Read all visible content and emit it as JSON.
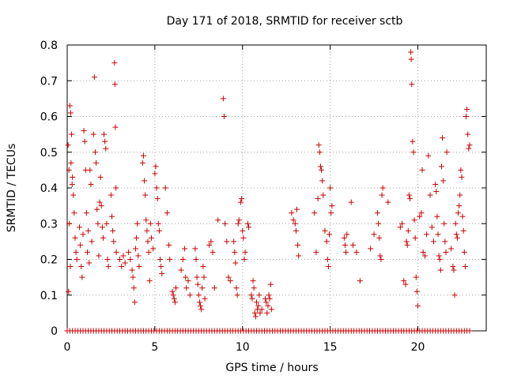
{
  "chart_data": {
    "type": "scatter",
    "title": "Day 171 of 2018, SRMTID for receiver sctb",
    "xlabel": "GPS time / hours",
    "ylabel": "SRMTID / TECUs",
    "xlim": [
      0,
      23.9
    ],
    "ylim": [
      0,
      0.8
    ],
    "xticks": [
      0,
      5,
      10,
      15,
      20
    ],
    "yticks": [
      0,
      0.1,
      0.2,
      0.3,
      0.4,
      0.5,
      0.6,
      0.7,
      0.8
    ],
    "xtick_labels": [
      "0",
      "5",
      "10",
      "15",
      "20"
    ],
    "ytick_labels": [
      "0",
      "0.1",
      "0.2",
      "0.3",
      "0.4",
      "0.5",
      "0.6",
      "0.7",
      "0.8"
    ],
    "grid": true,
    "marker": "+",
    "color": "#cc0000",
    "series": [
      {
        "name": "SRMTID",
        "points": [
          [
            0.05,
            0.52
          ],
          [
            0.1,
            0.45
          ],
          [
            0.15,
            0.63
          ],
          [
            0.2,
            0.61
          ],
          [
            0.25,
            0.55
          ],
          [
            0.3,
            0.43
          ],
          [
            0.12,
            0.3
          ],
          [
            0.18,
            0.18
          ],
          [
            0.08,
            0.11
          ],
          [
            0.35,
            0.38
          ],
          [
            0.4,
            0.33
          ],
          [
            0.45,
            0.26
          ],
          [
            0.5,
            0.22
          ],
          [
            0.55,
            0.2
          ],
          [
            0.22,
            0.47
          ],
          [
            0.28,
            0.41
          ],
          [
            0.7,
            0.29
          ],
          [
            0.75,
            0.24
          ],
          [
            0.8,
            0.18
          ],
          [
            0.85,
            0.15
          ],
          [
            0.9,
            0.27
          ],
          [
            0.95,
            0.56
          ],
          [
            1.0,
            0.53
          ],
          [
            1.05,
            0.45
          ],
          [
            1.1,
            0.33
          ],
          [
            1.15,
            0.22
          ],
          [
            1.2,
            0.28
          ],
          [
            1.25,
            0.19
          ],
          [
            1.3,
            0.45
          ],
          [
            1.35,
            0.41
          ],
          [
            1.4,
            0.25
          ],
          [
            1.5,
            0.55
          ],
          [
            1.55,
            0.71
          ],
          [
            1.6,
            0.5
          ],
          [
            1.65,
            0.47
          ],
          [
            1.7,
            0.34
          ],
          [
            1.75,
            0.3
          ],
          [
            1.8,
            0.21
          ],
          [
            1.85,
            0.36
          ],
          [
            1.9,
            0.43
          ],
          [
            1.95,
            0.35
          ],
          [
            2.0,
            0.29
          ],
          [
            2.05,
            0.26
          ],
          [
            2.1,
            0.55
          ],
          [
            2.15,
            0.53
          ],
          [
            2.2,
            0.51
          ],
          [
            2.25,
            0.3
          ],
          [
            2.3,
            0.2
          ],
          [
            2.35,
            0.18
          ],
          [
            2.5,
            0.38
          ],
          [
            2.55,
            0.32
          ],
          [
            2.6,
            0.28
          ],
          [
            2.65,
            0.25
          ],
          [
            2.7,
            0.75
          ],
          [
            2.72,
            0.69
          ],
          [
            2.75,
            0.57
          ],
          [
            2.78,
            0.4
          ],
          [
            2.8,
            0.22
          ],
          [
            3.0,
            0.2
          ],
          [
            3.1,
            0.18
          ],
          [
            3.2,
            0.21
          ],
          [
            3.3,
            0.19
          ],
          [
            3.5,
            0.22
          ],
          [
            3.6,
            0.2
          ],
          [
            3.7,
            0.17
          ],
          [
            3.75,
            0.15
          ],
          [
            3.8,
            0.12
          ],
          [
            3.85,
            0.08
          ],
          [
            3.9,
            0.23
          ],
          [
            3.95,
            0.26
          ],
          [
            4.0,
            0.3
          ],
          [
            4.05,
            0.21
          ],
          [
            4.1,
            0.18
          ],
          [
            4.3,
            0.47
          ],
          [
            4.35,
            0.49
          ],
          [
            4.4,
            0.42
          ],
          [
            4.45,
            0.38
          ],
          [
            4.5,
            0.31
          ],
          [
            4.55,
            0.28
          ],
          [
            4.6,
            0.25
          ],
          [
            4.65,
            0.22
          ],
          [
            4.7,
            0.14
          ],
          [
            4.75,
            0.3
          ],
          [
            4.8,
            0.26
          ],
          [
            4.9,
            0.23
          ],
          [
            5.0,
            0.44
          ],
          [
            5.05,
            0.46
          ],
          [
            5.1,
            0.4
          ],
          [
            5.15,
            0.37
          ],
          [
            5.2,
            0.3
          ],
          [
            5.25,
            0.28
          ],
          [
            5.3,
            0.2
          ],
          [
            5.35,
            0.18
          ],
          [
            5.4,
            0.16
          ],
          [
            5.6,
            0.4
          ],
          [
            5.7,
            0.33
          ],
          [
            5.8,
            0.24
          ],
          [
            5.85,
            0.2
          ],
          [
            6.0,
            0.11
          ],
          [
            6.05,
            0.1
          ],
          [
            6.1,
            0.09
          ],
          [
            6.15,
            0.08
          ],
          [
            6.2,
            0.12
          ],
          [
            6.5,
            0.17
          ],
          [
            6.6,
            0.2
          ],
          [
            6.7,
            0.23
          ],
          [
            6.75,
            0.15
          ],
          [
            6.8,
            0.12
          ],
          [
            6.9,
            0.14
          ],
          [
            7.0,
            0.1
          ],
          [
            7.3,
            0.23
          ],
          [
            7.35,
            0.2
          ],
          [
            7.4,
            0.15
          ],
          [
            7.45,
            0.13
          ],
          [
            7.5,
            0.1
          ],
          [
            7.55,
            0.08
          ],
          [
            7.6,
            0.07
          ],
          [
            7.65,
            0.06
          ],
          [
            7.7,
            0.12
          ],
          [
            7.75,
            0.18
          ],
          [
            7.8,
            0.15
          ],
          [
            7.85,
            0.09
          ],
          [
            8.1,
            0.24
          ],
          [
            8.2,
            0.25
          ],
          [
            8.3,
            0.22
          ],
          [
            8.4,
            0.12
          ],
          [
            8.6,
            0.31
          ],
          [
            8.9,
            0.65
          ],
          [
            8.95,
            0.6
          ],
          [
            9.0,
            0.3
          ],
          [
            9.1,
            0.25
          ],
          [
            9.2,
            0.15
          ],
          [
            9.3,
            0.14
          ],
          [
            9.5,
            0.25
          ],
          [
            9.55,
            0.22
          ],
          [
            9.6,
            0.19
          ],
          [
            9.65,
            0.12
          ],
          [
            9.7,
            0.1
          ],
          [
            9.75,
            0.3
          ],
          [
            9.8,
            0.31
          ],
          [
            9.9,
            0.36
          ],
          [
            9.95,
            0.37
          ],
          [
            10.0,
            0.28
          ],
          [
            10.05,
            0.26
          ],
          [
            10.1,
            0.2
          ],
          [
            10.15,
            0.22
          ],
          [
            10.3,
            0.3
          ],
          [
            10.35,
            0.29
          ],
          [
            10.5,
            0.1
          ],
          [
            10.55,
            0.09
          ],
          [
            10.6,
            0.14
          ],
          [
            10.65,
            0.12
          ],
          [
            10.7,
            0.05
          ],
          [
            10.75,
            0.04
          ],
          [
            10.8,
            0.08
          ],
          [
            10.85,
            0.06
          ],
          [
            10.9,
            0.07
          ],
          [
            10.95,
            0.1
          ],
          [
            11.0,
            0.05
          ],
          [
            11.1,
            0.06
          ],
          [
            11.3,
            0.09
          ],
          [
            11.35,
            0.08
          ],
          [
            11.4,
            0.05
          ],
          [
            11.45,
            0.07
          ],
          [
            11.5,
            0.1
          ],
          [
            11.55,
            0.09
          ],
          [
            11.6,
            0.13
          ],
          [
            11.65,
            0.06
          ],
          [
            12.8,
            0.33
          ],
          [
            12.9,
            0.31
          ],
          [
            13.0,
            0.3
          ],
          [
            13.05,
            0.28
          ],
          [
            13.1,
            0.34
          ],
          [
            13.15,
            0.24
          ],
          [
            13.2,
            0.21
          ],
          [
            14.1,
            0.33
          ],
          [
            14.2,
            0.22
          ],
          [
            14.3,
            0.37
          ],
          [
            14.35,
            0.52
          ],
          [
            14.4,
            0.5
          ],
          [
            14.45,
            0.46
          ],
          [
            14.5,
            0.45
          ],
          [
            14.55,
            0.42
          ],
          [
            14.6,
            0.38
          ],
          [
            14.7,
            0.28
          ],
          [
            14.8,
            0.25
          ],
          [
            14.85,
            0.2
          ],
          [
            14.9,
            0.18
          ],
          [
            14.95,
            0.27
          ],
          [
            15.0,
            0.4
          ],
          [
            15.05,
            0.33
          ],
          [
            15.1,
            0.35
          ],
          [
            15.8,
            0.26
          ],
          [
            15.85,
            0.24
          ],
          [
            15.9,
            0.22
          ],
          [
            15.95,
            0.27
          ],
          [
            16.2,
            0.36
          ],
          [
            16.3,
            0.24
          ],
          [
            16.5,
            0.22
          ],
          [
            16.7,
            0.14
          ],
          [
            17.3,
            0.23
          ],
          [
            17.5,
            0.27
          ],
          [
            17.7,
            0.33
          ],
          [
            17.75,
            0.3
          ],
          [
            17.8,
            0.26
          ],
          [
            17.85,
            0.21
          ],
          [
            17.9,
            0.2
          ],
          [
            17.95,
            0.38
          ],
          [
            18.0,
            0.4
          ],
          [
            18.3,
            0.36
          ],
          [
            19.0,
            0.29
          ],
          [
            19.1,
            0.3
          ],
          [
            19.2,
            0.14
          ],
          [
            19.3,
            0.13
          ],
          [
            19.35,
            0.25
          ],
          [
            19.4,
            0.24
          ],
          [
            19.45,
            0.28
          ],
          [
            19.5,
            0.38
          ],
          [
            19.55,
            0.37
          ],
          [
            19.6,
            0.78
          ],
          [
            19.62,
            0.76
          ],
          [
            19.65,
            0.69
          ],
          [
            19.7,
            0.53
          ],
          [
            19.75,
            0.5
          ],
          [
            19.8,
            0.31
          ],
          [
            19.85,
            0.26
          ],
          [
            19.9,
            0.15
          ],
          [
            19.95,
            0.11
          ],
          [
            20.0,
            0.07
          ],
          [
            20.1,
            0.32
          ],
          [
            20.2,
            0.33
          ],
          [
            20.25,
            0.45
          ],
          [
            20.3,
            0.22
          ],
          [
            20.4,
            0.21
          ],
          [
            20.5,
            0.27
          ],
          [
            20.6,
            0.49
          ],
          [
            20.7,
            0.38
          ],
          [
            20.8,
            0.29
          ],
          [
            20.9,
            0.25
          ],
          [
            21.0,
            0.41
          ],
          [
            21.05,
            0.39
          ],
          [
            21.1,
            0.32
          ],
          [
            21.15,
            0.27
          ],
          [
            21.2,
            0.21
          ],
          [
            21.25,
            0.2
          ],
          [
            21.3,
            0.17
          ],
          [
            21.35,
            0.46
          ],
          [
            21.4,
            0.54
          ],
          [
            21.45,
            0.42
          ],
          [
            21.5,
            0.3
          ],
          [
            21.55,
            0.25
          ],
          [
            21.6,
            0.22
          ],
          [
            21.65,
            0.5
          ],
          [
            21.9,
            0.23
          ],
          [
            22.0,
            0.18
          ],
          [
            22.05,
            0.17
          ],
          [
            22.1,
            0.1
          ],
          [
            22.15,
            0.3
          ],
          [
            22.2,
            0.27
          ],
          [
            22.25,
            0.26
          ],
          [
            22.3,
            0.33
          ],
          [
            22.35,
            0.35
          ],
          [
            22.4,
            0.38
          ],
          [
            22.45,
            0.45
          ],
          [
            22.5,
            0.43
          ],
          [
            22.55,
            0.32
          ],
          [
            22.6,
            0.28
          ],
          [
            22.65,
            0.22
          ],
          [
            22.7,
            0.18
          ],
          [
            22.75,
            0.6
          ],
          [
            22.8,
            0.62
          ],
          [
            22.85,
            0.55
          ],
          [
            22.9,
            0.51
          ],
          [
            22.95,
            0.52
          ]
        ],
        "zero_points_x": [
          0.0,
          0.15,
          0.3,
          0.45,
          0.6,
          0.75,
          0.9,
          1.05,
          1.2,
          1.35,
          1.5,
          1.65,
          1.8,
          1.95,
          2.1,
          2.25,
          2.4,
          2.55,
          2.7,
          2.85,
          3.0,
          3.15,
          3.3,
          3.45,
          3.6,
          3.75,
          3.9,
          4.05,
          4.2,
          4.35,
          4.5,
          4.65,
          4.8,
          4.95,
          5.1,
          5.25,
          5.4,
          5.55,
          5.7,
          5.85,
          6.0,
          6.15,
          6.3,
          6.45,
          6.6,
          6.75,
          6.9,
          7.05,
          7.2,
          7.35,
          7.5,
          7.65,
          7.8,
          7.95,
          8.1,
          8.25,
          8.4,
          8.55,
          8.7,
          8.85,
          9.0,
          9.15,
          9.3,
          9.45,
          9.6,
          9.75,
          9.9,
          10.05,
          10.2,
          10.35,
          10.5,
          10.65,
          10.8,
          10.95,
          11.1,
          11.25,
          11.4,
          11.55,
          11.7,
          11.85,
          12.0,
          12.15,
          12.3,
          12.45,
          12.6,
          12.75,
          12.9,
          13.05,
          13.2,
          13.35,
          13.5,
          13.65,
          13.8,
          13.95,
          14.1,
          14.25,
          14.4,
          14.55,
          14.7,
          14.85,
          15.0,
          15.15,
          15.3,
          15.45,
          15.6,
          15.75,
          15.9,
          16.05,
          16.2,
          16.35,
          16.5,
          16.65,
          16.8,
          16.95,
          17.1,
          17.25,
          17.4,
          17.55,
          17.7,
          17.85,
          18.0,
          18.15,
          18.3,
          18.45,
          18.6,
          18.75,
          18.9,
          19.05,
          19.2,
          19.35,
          19.5,
          19.65,
          19.8,
          19.95,
          20.1,
          20.25,
          20.4,
          20.55,
          20.7,
          20.85,
          21.0,
          21.15,
          21.3,
          21.45,
          21.6,
          21.75,
          21.9,
          22.05,
          22.2,
          22.35,
          22.5,
          22.65,
          22.8,
          22.95
        ]
      }
    ]
  }
}
